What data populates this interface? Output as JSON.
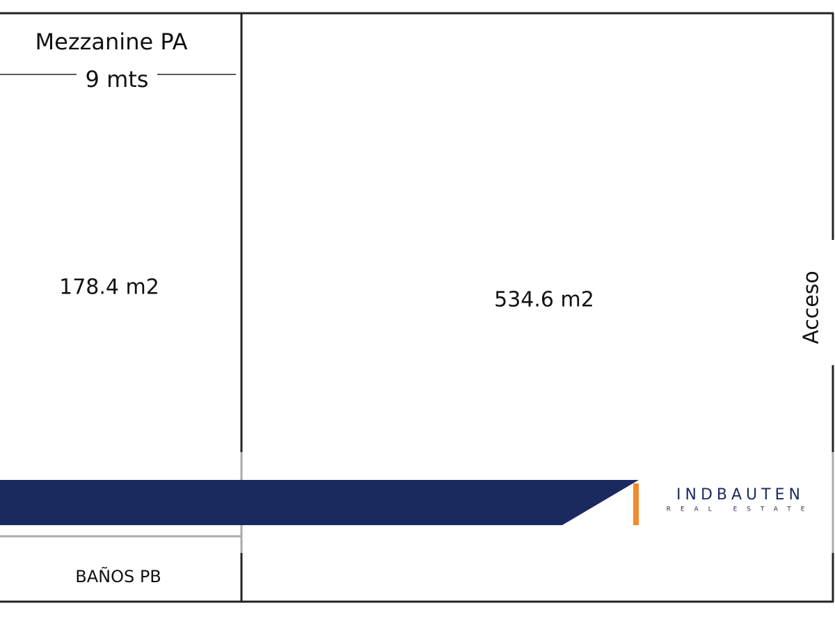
{
  "rooms": [
    {
      "title": "Mezzanine PA",
      "width": "9 mts",
      "area": "178.4 m2"
    },
    {
      "area": "534.6 m2",
      "door": "Acceso"
    },
    {
      "title": "BAÑOS PB"
    }
  ],
  "logo": {
    "brand": "INDBAUTEN",
    "tagline": "REAL ESTATE"
  }
}
